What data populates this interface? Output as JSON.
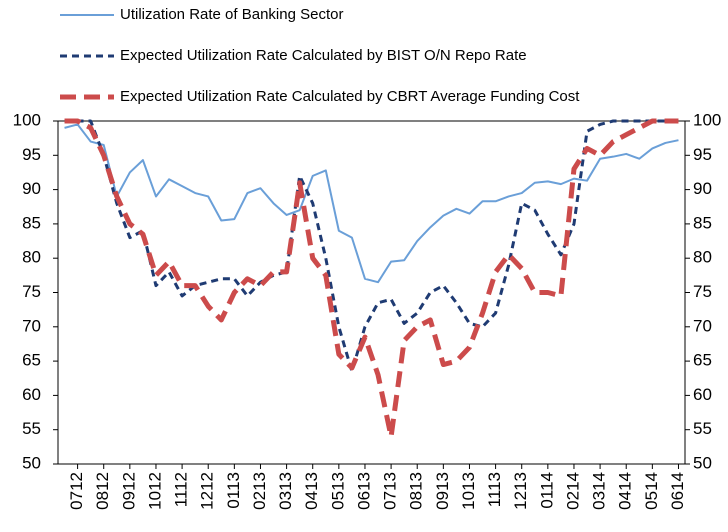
{
  "chart_data": {
    "type": "line",
    "categories": [
      null,
      "0712",
      null,
      "0812",
      null,
      "0912",
      null,
      "1012",
      null,
      "1112",
      null,
      "1212",
      null,
      "0113",
      null,
      "0213",
      null,
      "0313",
      null,
      "0413",
      null,
      "0513",
      null,
      "0613",
      null,
      "0713",
      null,
      "0813",
      null,
      "0913",
      null,
      "1013",
      null,
      "1113",
      null,
      "1213",
      null,
      "0114",
      null,
      "0214",
      null,
      "0314",
      null,
      "0414",
      null,
      "0514",
      null,
      "0614"
    ],
    "series": [
      {
        "name": "Utilization Rate of Banking Sector",
        "color": "#6a9fd8",
        "dash": "solid",
        "values": [
          99,
          99.5,
          97,
          96.5,
          89,
          92.5,
          94.3,
          89,
          91.5,
          90.5,
          89.5,
          89,
          85.5,
          85.7,
          89.5,
          90.2,
          88,
          86.3,
          87,
          92,
          92.8,
          84,
          83,
          77,
          76.5,
          79.5,
          79.7,
          82.5,
          84.5,
          86.2,
          87.2,
          86.5,
          88.3,
          88.3,
          89,
          89.5,
          91,
          91.2,
          90.8,
          91.6,
          91.3,
          94.5,
          94.8,
          95.2,
          94.5,
          96,
          96.8,
          97.2
        ]
      },
      {
        "name": "Expected Utilization Rate Calculated by BIST O/N Repo Rate",
        "color": "#1f3b73",
        "dash": "short",
        "values": [
          100,
          100,
          100,
          95,
          88,
          83,
          84,
          76,
          78,
          74.5,
          76,
          76.5,
          77,
          77,
          74.5,
          76.5,
          77.5,
          78,
          92,
          88,
          80,
          70,
          63.5,
          70,
          73.5,
          74,
          70.5,
          72,
          75,
          76,
          73.5,
          70.5,
          70,
          72,
          79,
          88,
          87,
          83.5,
          80.5,
          85,
          98.5,
          99.5,
          100,
          100,
          100,
          100,
          100,
          100
        ]
      },
      {
        "name": "Expected Utilization Rate Calculated by CBRT Average Funding Cost",
        "color": "#cc4b4b",
        "dash": "long",
        "values": [
          100,
          100,
          99,
          95,
          89,
          85,
          83.5,
          77.5,
          79.5,
          76,
          76,
          73,
          71,
          75,
          77,
          76,
          78,
          78,
          91,
          80,
          77.5,
          66,
          64,
          68.5,
          63,
          54,
          68,
          70,
          71,
          64.5,
          65,
          67,
          72,
          78,
          80.5,
          78.5,
          75,
          75,
          74.5,
          93,
          96,
          95,
          97,
          98,
          99,
          100,
          100,
          100
        ]
      }
    ],
    "ylim": [
      50,
      100
    ],
    "yticks": [
      50,
      55,
      60,
      65,
      70,
      75,
      80,
      85,
      90,
      95,
      100
    ],
    "y2lim": [
      50,
      100
    ],
    "y2ticks": [
      50,
      55,
      60,
      65,
      70,
      75,
      80,
      85,
      90,
      95,
      100
    ]
  }
}
